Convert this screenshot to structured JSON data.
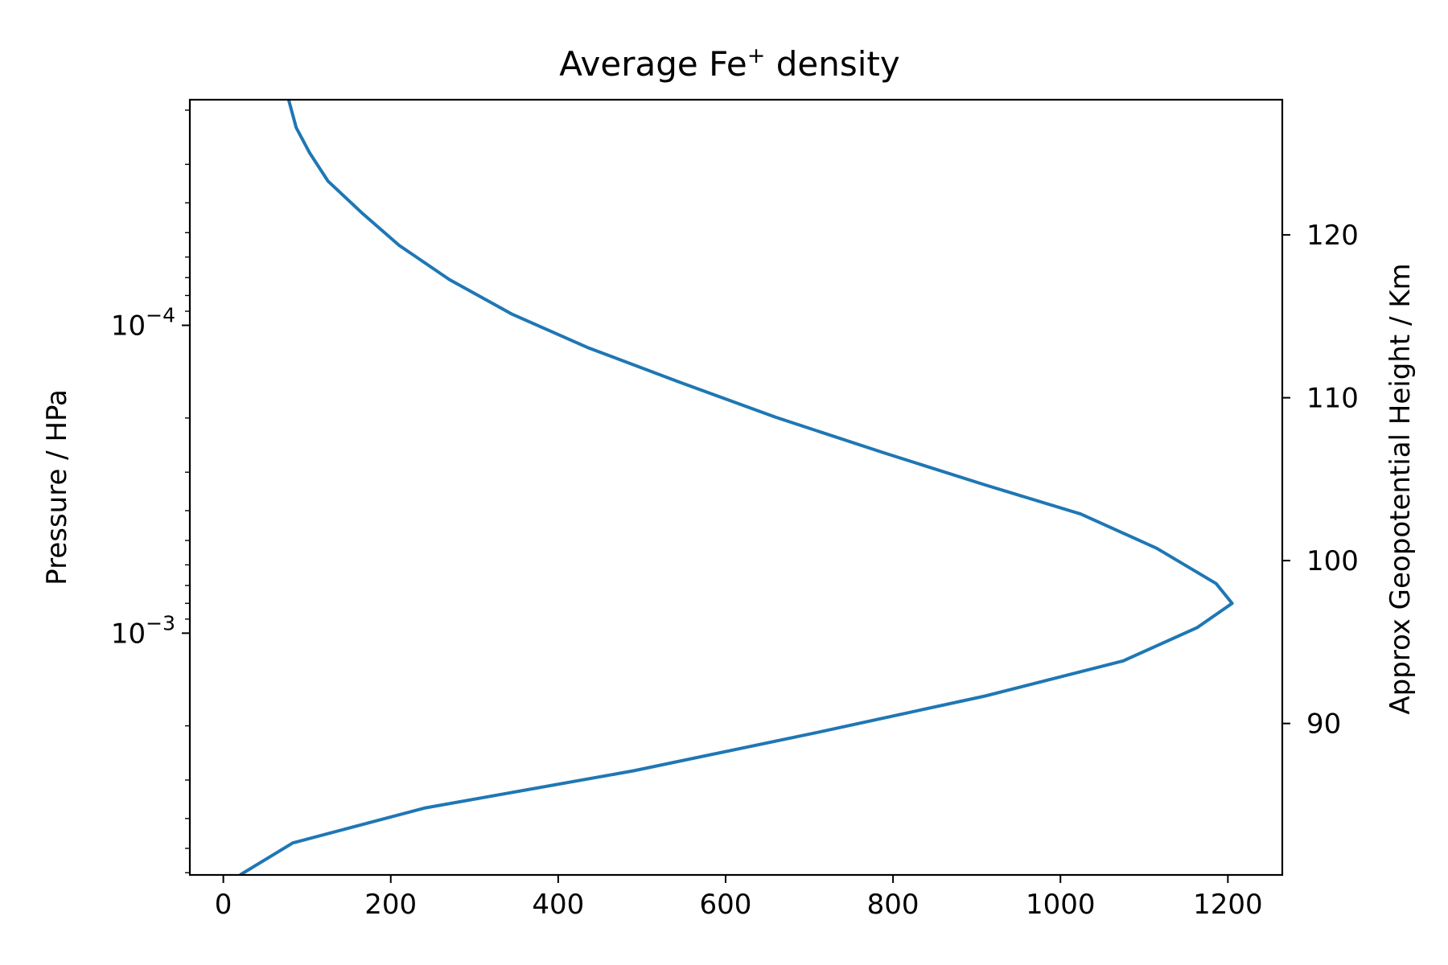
{
  "chart_data": {
    "type": "line",
    "title": {
      "prefix": "Average Fe",
      "superscript": "+",
      "suffix": " density"
    },
    "xlabel": "",
    "ylabel": "Pressure / HPa",
    "y2label": "Approx Geopotential Height / Km",
    "xlim": [
      -40,
      1265
    ],
    "x_ticks": [
      0,
      200,
      400,
      600,
      800,
      1000,
      1200
    ],
    "ylim": [
      0.0061,
      1.85e-05
    ],
    "y_scale": "log",
    "y_inverted": true,
    "y_major_ticks": [
      {
        "value": 0.0001,
        "base": "10",
        "exp": "−4"
      },
      {
        "value": 0.001,
        "base": "10",
        "exp": "−3"
      }
    ],
    "y2lim": [
      80.7,
      128.3
    ],
    "y2_ticks": [
      90,
      100,
      110,
      120
    ],
    "grid": false,
    "series": [
      {
        "name": "",
        "color": "#1f77b4",
        "x": [
          20,
          83,
          240,
          490,
          710,
          910,
          1075,
          1163,
          1205,
          1186,
          1115,
          1024,
          910,
          790,
          660,
          545,
          435,
          345,
          270,
          210,
          165,
          125,
          103,
          87,
          78
        ],
        "y": [
          0.0061,
          0.0048,
          0.0037,
          0.0028,
          0.0021,
          0.0016,
          0.00123,
          0.00096,
          0.0008,
          0.00069,
          0.00053,
          0.00041,
          0.00033,
          0.00026,
          0.000199,
          0.000153,
          0.000118,
          9.2e-05,
          7.1e-05,
          5.5e-05,
          4.3e-05,
          3.4e-05,
          2.75e-05,
          2.28e-05,
          1.85e-05
        ]
      }
    ]
  }
}
